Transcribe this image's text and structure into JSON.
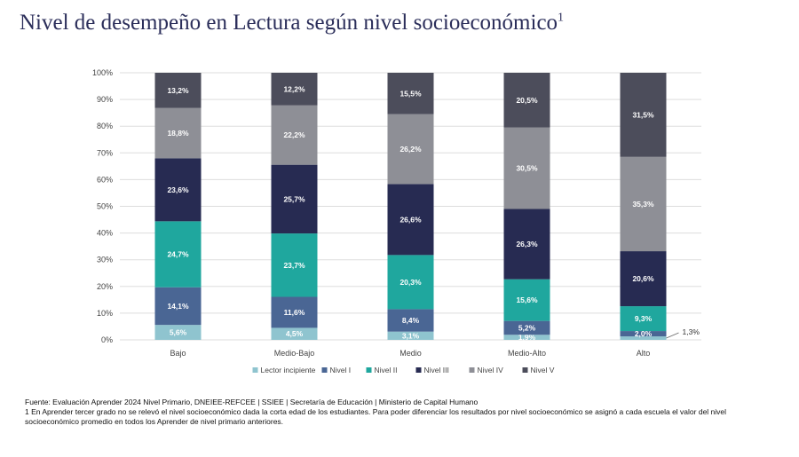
{
  "title": "Nivel de desempeño en Lectura según nivel socioeconómico",
  "title_sup": "1",
  "chart_data": {
    "type": "bar",
    "stacked": true,
    "categories": [
      "Bajo",
      "Medio-Bajo",
      "Medio",
      "Medio-Alto",
      "Alto"
    ],
    "ylim": [
      0,
      100
    ],
    "yticks": [
      "0%",
      "10%",
      "20%",
      "30%",
      "40%",
      "50%",
      "60%",
      "70%",
      "80%",
      "90%",
      "100%"
    ],
    "legend_position": "bottom",
    "series": [
      {
        "name": "Lector incipiente",
        "color": "#8fc4cf",
        "values": [
          5.6,
          4.5,
          3.1,
          1.9,
          1.3
        ],
        "labels": [
          "5,6%",
          "4,5%",
          "3,1%",
          "1,9%",
          "1,3%"
        ]
      },
      {
        "name": "Nivel I",
        "color": "#4a6694",
        "values": [
          14.1,
          11.6,
          8.4,
          5.2,
          2.0
        ],
        "labels": [
          "14,1%",
          "11,6%",
          "8,4%",
          "5,2%",
          "2,0%"
        ]
      },
      {
        "name": "Nivel II",
        "color": "#1fa79e",
        "values": [
          24.7,
          23.7,
          20.3,
          15.6,
          9.3
        ],
        "labels": [
          "24,7%",
          "23,7%",
          "20,3%",
          "15,6%",
          "9,3%"
        ]
      },
      {
        "name": "Nivel III",
        "color": "#272b52",
        "values": [
          23.6,
          25.7,
          26.6,
          26.3,
          20.6
        ],
        "labels": [
          "23,6%",
          "25,7%",
          "26,6%",
          "26,3%",
          "20,6%"
        ]
      },
      {
        "name": "Nivel IV",
        "color": "#8e8f96",
        "values": [
          18.8,
          22.2,
          26.2,
          30.5,
          35.3
        ],
        "labels": [
          "18,8%",
          "22,2%",
          "26,2%",
          "30,5%",
          "35,3%"
        ]
      },
      {
        "name": "Nivel V",
        "color": "#4c4d5b",
        "values": [
          13.2,
          12.2,
          15.5,
          20.5,
          31.5
        ],
        "labels": [
          "13,2%",
          "12,2%",
          "15,5%",
          "20,5%",
          "31,5%"
        ]
      }
    ],
    "annotations": [
      {
        "category": "Alto",
        "series": "Lector incipiente",
        "text": "1,3%"
      }
    ]
  },
  "footer": {
    "source": "Fuente: Evaluación Aprender 2024 Nivel Primario, DNEIEE-REFCEE | SSIEE | Secretaría de Educación | Ministerio de Capital Humano",
    "note": "1 En Aprender tercer grado no se relevó el nivel socioeconómico dada la corta edad de los estudiantes. Para poder diferenciar los resultados por nivel socioeconómico se asignó a cada escuela el valor del nivel socioeconómico promedio en todos los Aprender de nivel primario anteriores."
  }
}
